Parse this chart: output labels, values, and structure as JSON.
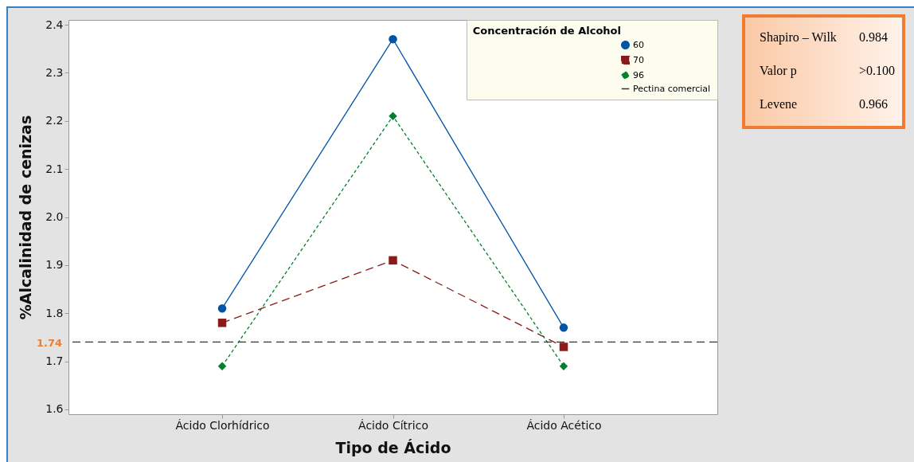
{
  "chart_data": {
    "type": "line",
    "xlabel": "Tipo de Ácido",
    "ylabel": "%Alcalinidad de cenizas",
    "legend_title": "Concentración de Alcohol",
    "categories": [
      "Ácido Clorhídrico",
      "Ácido Cítrico",
      "Ácido Acético"
    ],
    "series": [
      {
        "name": "60",
        "color": "#0054a6",
        "marker": "circle",
        "line_style": "solid",
        "values": [
          1.81,
          2.37,
          1.77
        ]
      },
      {
        "name": "70",
        "color": "#8b1a1a",
        "marker": "square",
        "line_style": "dashed",
        "values": [
          1.78,
          1.91,
          1.73
        ]
      },
      {
        "name": "96",
        "color": "#00802b",
        "marker": "diamond",
        "line_style": "dotted",
        "values": [
          1.69,
          2.21,
          1.69
        ]
      }
    ],
    "ylim": [
      1.59,
      2.41
    ],
    "yticks": [
      1.6,
      1.7,
      1.8,
      1.9,
      {
        "value": 2,
        "label": "2.0"
      },
      2.1,
      2.2,
      2.3,
      2.4
    ],
    "grid": false,
    "legend": "top right",
    "ref_lines": [
      {
        "axis": "y",
        "value": 1.74,
        "label": "Pectina comercial",
        "color": "#333333",
        "line_style": "dashed"
      }
    ],
    "annotations": [
      "1.74",
      "Shapiro – Wilk",
      "0.984",
      "Valor p",
      ">0.100",
      "Levene",
      "0.966"
    ]
  }
}
